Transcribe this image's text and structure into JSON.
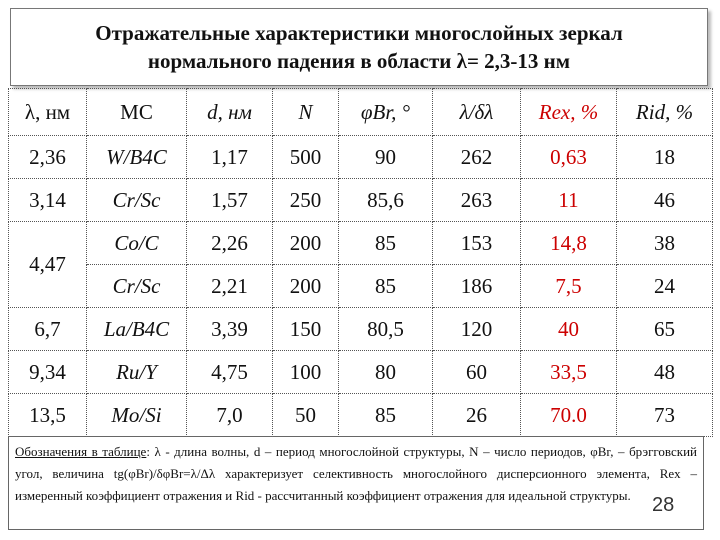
{
  "title": {
    "line1": "Отражательные характеристики многослойных зеркал",
    "line2": "нормального падения в области λ= 2,3-13 нм"
  },
  "table": {
    "headers": [
      "λ, нм",
      "МС",
      "d, нм",
      "N",
      "φBr, °",
      "λ/δλ",
      "Rex, %",
      "Rid, %"
    ],
    "rows": [
      {
        "lambda": "2,36",
        "ms": "W/B4C",
        "d": "1,17",
        "n": "500",
        "phi": "90",
        "sel": "262",
        "rex": "0,63",
        "rid": "18"
      },
      {
        "lambda": "3,14",
        "ms": "Cr/Sc",
        "d": "1,57",
        "n": "250",
        "phi": "85,6",
        "sel": "263",
        "rex": "11",
        "rid": "46"
      },
      {
        "lambda": "4,47",
        "ms": "Co/C",
        "d": "2,26",
        "n": "200",
        "phi": "85",
        "sel": "153",
        "rex": "14,8",
        "rid": "38"
      },
      {
        "lambda": "",
        "ms": "Cr/Sc",
        "d": "2,21",
        "n": "200",
        "phi": "85",
        "sel": "186",
        "rex": "7,5",
        "rid": "24"
      },
      {
        "lambda": "6,7",
        "ms": "La/B4C",
        "d": "3,39",
        "n": "150",
        "phi": "80,5",
        "sel": "120",
        "rex": "40",
        "rid": "65"
      },
      {
        "lambda": "9,34",
        "ms": "Ru/Y",
        "d": "4,75",
        "n": "100",
        "phi": "80",
        "sel": "60",
        "rex": "33,5",
        "rid": "48"
      },
      {
        "lambda": "13,5",
        "ms": "Mo/Si",
        "d": "7,0",
        "n": "50",
        "phi": "85",
        "sel": "26",
        "rex": "70.0",
        "rid": "73"
      }
    ]
  },
  "note": {
    "label": "Обозначения в таблице",
    "text": ": λ - длина волны, d – период многослойной структуры, N – число периодов, φBr, – брэгговский угол, величина tg(φBr)/δφBr=λ/Δλ характеризует селективность многослойного дисперсионного элемента, Rex – измеренный коэффициент отражения и Rid - рассчитанный коэффициент отражения для идеальной структуры."
  },
  "page_number": "28",
  "colors": {
    "accent_red": "#cc0000"
  }
}
